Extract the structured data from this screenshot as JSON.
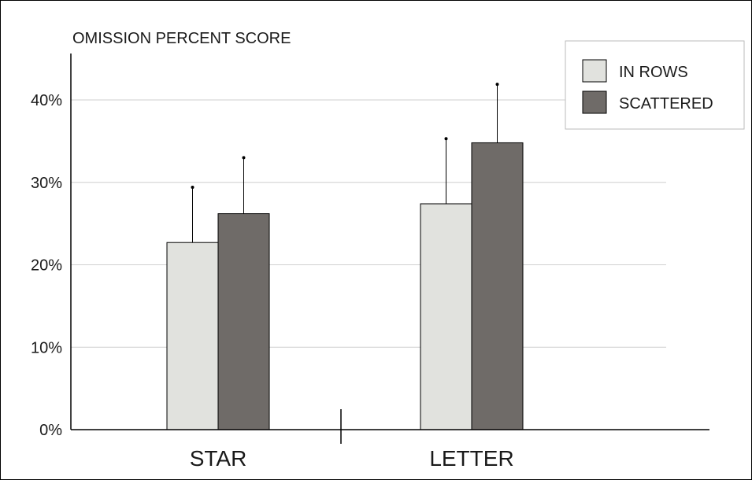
{
  "chart_data": {
    "type": "bar",
    "title": "OMISSION PERCENT SCORE",
    "categories": [
      "STAR",
      "LETTER"
    ],
    "series": [
      {
        "name": "IN ROWS",
        "values": [
          22.7,
          27.4
        ],
        "errors": [
          6.7,
          7.9
        ]
      },
      {
        "name": "SCATTERED",
        "values": [
          26.2,
          34.8
        ],
        "errors": [
          6.8,
          7.1
        ]
      }
    ],
    "yticks": [
      0,
      10,
      20,
      30,
      40
    ],
    "ytick_labels": [
      "0%",
      "10%",
      "20%",
      "30%",
      "40%"
    ],
    "ylim": [
      0,
      45
    ],
    "grid": true,
    "legend_position": "top-right",
    "colors": {
      "IN ROWS": "#e1e2de",
      "SCATTERED": "#6f6b68"
    }
  }
}
